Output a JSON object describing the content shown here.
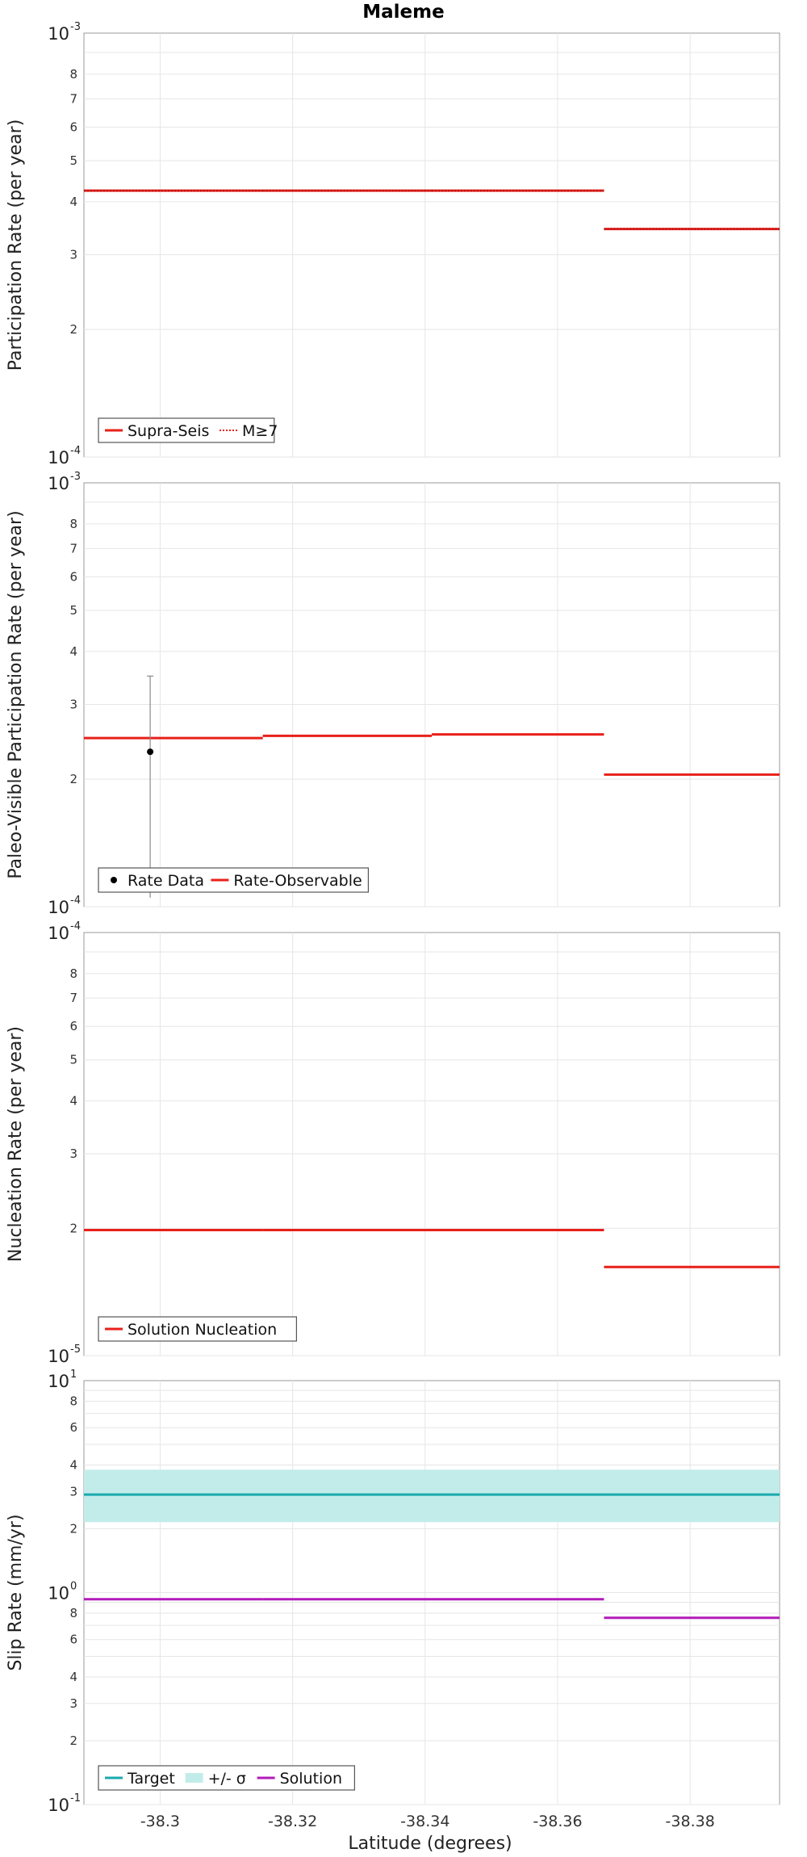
{
  "title": "Maleme",
  "xlabel": "Latitude (degrees)",
  "x_ticks": [
    -38.3,
    -38.32,
    -38.34,
    -38.36,
    -38.38
  ],
  "x_tick_labels": [
    "-38.3",
    "-38.32",
    "-38.34",
    "-38.36",
    "-38.38"
  ],
  "xlim": [
    -38.2885,
    -38.3935
  ],
  "colors": {
    "red": "#e8201a",
    "cyan": "#1aa9ad",
    "band": "#c2ecea",
    "magenta": "#b21cb8",
    "black": "#000000",
    "errorbar": "#8a8a8a"
  },
  "chart_data": [
    {
      "type": "line",
      "ylabel": "Participation Rate (per year)",
      "yscale": "log",
      "ylim": [
        0.0001,
        0.001
      ],
      "major_ticks": [
        {
          "base": "10",
          "exp": "-4"
        },
        {
          "base": "10",
          "exp": "-3"
        }
      ],
      "minor_tick_labels": [
        "2",
        "3",
        "4",
        "5",
        "6",
        "7",
        "8"
      ],
      "legend_location": "bottom-left",
      "legend": [
        {
          "label": "Supra-Seis",
          "style": "solid",
          "color": "#e8201a"
        },
        {
          "label": "M≥7",
          "style": "dotted",
          "color": "#e8201a"
        }
      ],
      "series": [
        {
          "name": "Supra-Seis",
          "style": "step",
          "segments": [
            {
              "x0": -38.2885,
              "x1": -38.3155,
              "y": 0.000425
            },
            {
              "x0": -38.3155,
              "x1": -38.341,
              "y": 0.000425
            },
            {
              "x0": -38.341,
              "x1": -38.367,
              "y": 0.000425
            },
            {
              "x0": -38.367,
              "x1": -38.3935,
              "y": 0.000345
            }
          ]
        },
        {
          "name": "M≥7",
          "style": "dotted-step",
          "segments": [
            {
              "x0": -38.2885,
              "x1": -38.3155,
              "y": 0.000425
            },
            {
              "x0": -38.3155,
              "x1": -38.341,
              "y": 0.000425
            },
            {
              "x0": -38.341,
              "x1": -38.367,
              "y": 0.000425
            },
            {
              "x0": -38.367,
              "x1": -38.3935,
              "y": 0.000345
            }
          ]
        }
      ]
    },
    {
      "type": "line",
      "ylabel": "Paleo-Visible Participation Rate (per year)",
      "yscale": "log",
      "ylim": [
        0.0001,
        0.001
      ],
      "major_ticks": [
        {
          "base": "10",
          "exp": "-4"
        },
        {
          "base": "10",
          "exp": "-3"
        }
      ],
      "minor_tick_labels": [
        "2",
        "3",
        "4",
        "5",
        "6",
        "7",
        "8"
      ],
      "legend_location": "bottom-left",
      "legend": [
        {
          "label": "Rate Data",
          "style": "point",
          "color": "#000000"
        },
        {
          "label": "Rate-Observable",
          "style": "solid",
          "color": "#e8201a"
        }
      ],
      "points": [
        {
          "name": "Rate Data",
          "x": -38.2985,
          "y": 0.000232,
          "y_low": 0.000105,
          "y_high": 0.00035
        }
      ],
      "series": [
        {
          "name": "Rate-Observable",
          "style": "step",
          "segments": [
            {
              "x0": -38.2885,
              "x1": -38.3155,
              "y": 0.00025
            },
            {
              "x0": -38.3155,
              "x1": -38.341,
              "y": 0.000253
            },
            {
              "x0": -38.341,
              "x1": -38.367,
              "y": 0.000255
            },
            {
              "x0": -38.367,
              "x1": -38.3935,
              "y": 0.000205
            }
          ]
        }
      ]
    },
    {
      "type": "line",
      "ylabel": "Nucleation Rate (per year)",
      "yscale": "log",
      "ylim": [
        1e-05,
        0.0001
      ],
      "major_ticks": [
        {
          "base": "10",
          "exp": "-5"
        },
        {
          "base": "10",
          "exp": "-4"
        }
      ],
      "minor_tick_labels": [
        "2",
        "3",
        "4",
        "5",
        "6",
        "7",
        "8"
      ],
      "legend_location": "bottom-left",
      "legend": [
        {
          "label": "Solution Nucleation",
          "style": "solid",
          "color": "#e8201a"
        }
      ],
      "series": [
        {
          "name": "Solution Nucleation",
          "style": "step",
          "segments": [
            {
              "x0": -38.2885,
              "x1": -38.3155,
              "y": 1.98e-05
            },
            {
              "x0": -38.3155,
              "x1": -38.341,
              "y": 1.98e-05
            },
            {
              "x0": -38.341,
              "x1": -38.367,
              "y": 1.98e-05
            },
            {
              "x0": -38.367,
              "x1": -38.3935,
              "y": 1.62e-05
            }
          ]
        }
      ]
    },
    {
      "type": "line",
      "ylabel": "Slip Rate (mm/yr)",
      "yscale": "log",
      "ylim": [
        0.1,
        10
      ],
      "major_ticks": [
        {
          "base": "10",
          "exp": "-1"
        },
        {
          "base": "10",
          "exp": "0"
        },
        {
          "base": "10",
          "exp": "1"
        }
      ],
      "minor_tick_labels": [
        "2",
        "3",
        "4",
        "6",
        "8"
      ],
      "legend_location": "bottom-left",
      "legend": [
        {
          "label": "Target",
          "style": "solid",
          "color": "#1aa9ad"
        },
        {
          "label": "+/- σ",
          "style": "band",
          "color": "#c2ecea"
        },
        {
          "label": "Solution",
          "style": "solid",
          "color": "#b21cb8"
        }
      ],
      "band": {
        "name": "+/- σ",
        "x0": -38.2885,
        "x1": -38.3935,
        "y_low": 2.15,
        "y_high": 3.8
      },
      "series": [
        {
          "name": "Target",
          "style": "step",
          "segments": [
            {
              "x0": -38.2885,
              "x1": -38.3935,
              "y": 2.9
            }
          ]
        },
        {
          "name": "Solution",
          "style": "step",
          "segments": [
            {
              "x0": -38.2885,
              "x1": -38.3155,
              "y": 0.93
            },
            {
              "x0": -38.3155,
              "x1": -38.341,
              "y": 0.93
            },
            {
              "x0": -38.341,
              "x1": -38.367,
              "y": 0.93
            },
            {
              "x0": -38.367,
              "x1": -38.3935,
              "y": 0.76
            }
          ]
        }
      ]
    }
  ]
}
